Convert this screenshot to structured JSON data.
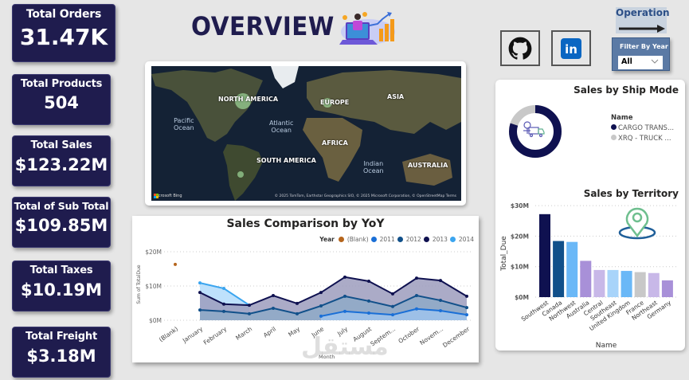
{
  "header": {
    "title": "OVERVIEW",
    "operation_label": "Operation",
    "filter": {
      "label": "Filter By Year",
      "selected": "All"
    }
  },
  "social": [
    {
      "name": "github-icon"
    },
    {
      "name": "linkedin-icon",
      "text": "in"
    }
  ],
  "kpis": [
    {
      "label": "Total Orders",
      "value": "31.47K"
    },
    {
      "label": "Total Products",
      "value": "504"
    },
    {
      "label": "Total Sales",
      "value": "$123.22M"
    },
    {
      "label": "Total of Sub Total",
      "value": "$109.85M"
    },
    {
      "label": "Total Taxes",
      "value": "$10.19M"
    },
    {
      "label": "Total Freight",
      "value": "$3.18M"
    }
  ],
  "map": {
    "continents": [
      "NORTH AMERICA",
      "EUROPE",
      "ASIA",
      "AFRICA",
      "SOUTH AMERICA",
      "AUSTRALIA"
    ],
    "oceans": [
      "Pacific Ocean",
      "Atlantic Ocean",
      "Indian Ocean"
    ],
    "ocean_lines": [
      [
        "Pacific",
        "Ocean"
      ],
      [
        "Atlantic",
        "Ocean"
      ],
      [
        "Indian",
        "Ocean"
      ]
    ],
    "provider": "Microsoft Bing",
    "credit": "© 2025 TomTom, Earthstar Geographics SIO, © 2025 Microsoft Corporation, © OpenStreetMap  Terms"
  },
  "yoy": {
    "title": "Sales Comparison by YoY",
    "legend_title": "Year",
    "y_axis_label": "Sum of TotalDue",
    "x_axis_label": "Month"
  },
  "ship_mode": {
    "title": "Sales by Ship Mode",
    "legend_title": "Name",
    "items": [
      {
        "label": "CARGO TRANS...",
        "color": "#0f1150"
      },
      {
        "label": "XRQ - TRUCK ...",
        "color": "#c8c8c8"
      }
    ]
  },
  "territory": {
    "title": "Sales by Territory",
    "y_axis_label": "Total_Due",
    "x_axis_label": "Name"
  },
  "colors": {
    "kpi_bg": "#1f1c4e",
    "blank": "#b5651d",
    "y2011": "#1a6fd6",
    "y2012": "#11508a",
    "y2013": "#0f1150",
    "y2014": "#3ba5ef"
  },
  "watermark": "مستقل",
  "chart_data": [
    {
      "type": "area",
      "title": "Sales Comparison by YoY",
      "xlabel": "Month",
      "ylabel": "Sum of TotalDue",
      "categories": [
        "(Blank)",
        "January",
        "February",
        "March",
        "April",
        "May",
        "June",
        "July",
        "August",
        "Septem...",
        "October",
        "Novem...",
        "December"
      ],
      "yticks": [
        "$0M",
        "$10M",
        "$20M"
      ],
      "ylim": [
        0,
        20
      ],
      "legend": [
        "(Blank)",
        "2011",
        "2012",
        "2013",
        "2014"
      ],
      "legend_position": "top-right",
      "grid": true,
      "series": [
        {
          "name": "(Blank)",
          "values": [
            16.3,
            null,
            null,
            null,
            null,
            null,
            null,
            null,
            null,
            null,
            null,
            null,
            null
          ]
        },
        {
          "name": "2011",
          "values": [
            null,
            null,
            null,
            null,
            null,
            null,
            1.2,
            2.6,
            2.1,
            1.6,
            3.3,
            2.8,
            1.6
          ]
        },
        {
          "name": "2012",
          "values": [
            null,
            3.0,
            2.6,
            1.9,
            3.5,
            1.9,
            4.2,
            7.0,
            5.6,
            4.0,
            7.2,
            5.8,
            3.7
          ]
        },
        {
          "name": "2013",
          "values": [
            null,
            8.1,
            4.7,
            4.4,
            7.2,
            4.9,
            8.1,
            12.6,
            11.4,
            7.7,
            12.3,
            11.6,
            7.0
          ]
        },
        {
          "name": "2014",
          "values": [
            null,
            10.9,
            9.3,
            4.4,
            null,
            null,
            null,
            null,
            null,
            null,
            null,
            null,
            null
          ]
        }
      ]
    },
    {
      "type": "pie",
      "title": "Sales by Ship Mode",
      "legend": [
        "CARGO TRANS...",
        "XRQ - TRUCK ..."
      ],
      "values": [
        80,
        20
      ],
      "legend_position": "right"
    },
    {
      "type": "bar",
      "title": "Sales by Territory",
      "xlabel": "Name",
      "ylabel": "Total_Due",
      "categories": [
        "Southwest",
        "Canada",
        "Northwest",
        "Australia",
        "Central",
        "Southeast",
        "United Kingdom",
        "France",
        "Northeast",
        "Germany"
      ],
      "values": [
        27.2,
        18.4,
        18.1,
        11.9,
        8.9,
        8.9,
        8.6,
        8.2,
        7.9,
        5.5
      ],
      "colors": [
        "#0f1150",
        "#11508a",
        "#6ab8f7",
        "#a890d8",
        "#c8b8e8",
        "#a8d4fa",
        "#6ab8f7",
        "#c8c8c8",
        "#c8b8e8",
        "#a890d8"
      ],
      "yticks": [
        "$0M",
        "$10M",
        "$20M",
        "$30M"
      ],
      "ylim": [
        0,
        30
      ],
      "grid": true
    }
  ]
}
